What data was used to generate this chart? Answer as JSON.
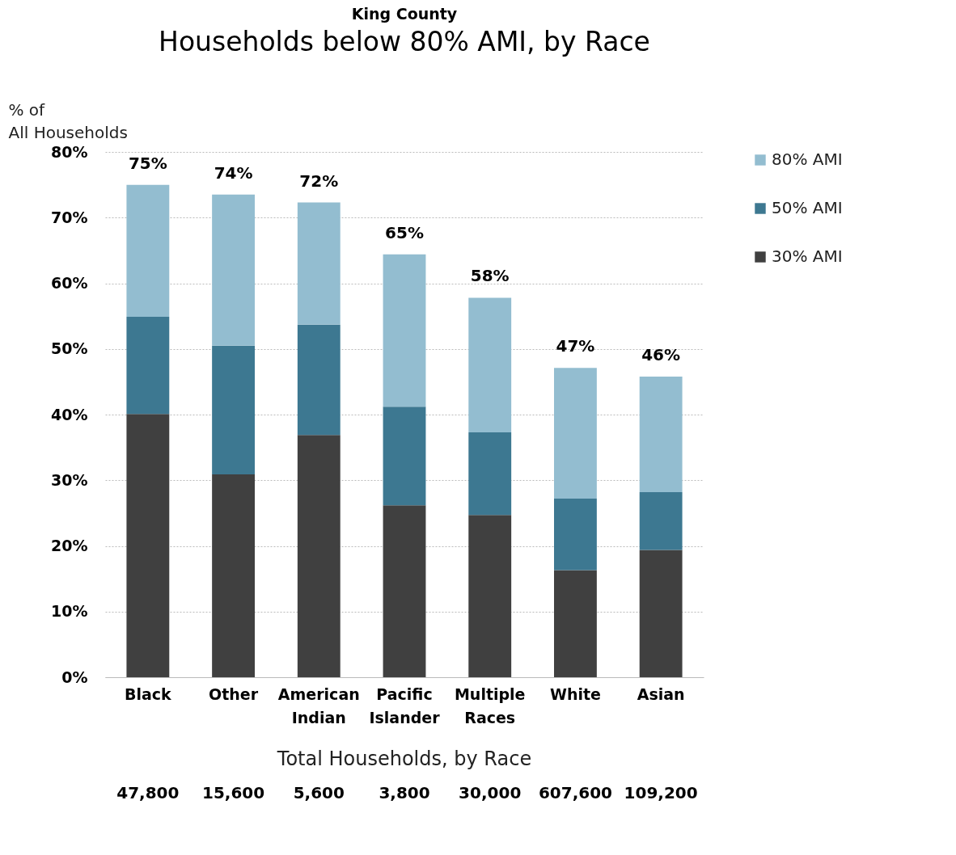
{
  "chart_data": {
    "type": "bar",
    "title": "Households below 80% AMI, by Race",
    "subtitle": "King County",
    "ylabel": "% of All Households",
    "categories": [
      "Black",
      "Other",
      "American Indian",
      "Pacific Islander",
      "Multiple Races",
      "White",
      "Asian"
    ],
    "stacked": true,
    "series": [
      {
        "name": "30% AMI",
        "color": "#404040",
        "values": [
          40.1,
          30.9,
          36.9,
          26.2,
          24.7,
          16.3,
          19.4
        ]
      },
      {
        "name": "50% AMI",
        "color": "#3d7891",
        "values": [
          14.8,
          19.6,
          16.8,
          15,
          12.6,
          10.9,
          8.8
        ]
      },
      {
        "name": "80% AMI",
        "color": "#93bdd0",
        "values": [
          20.1,
          23,
          18.6,
          23.2,
          20.5,
          19.9,
          17.6
        ]
      }
    ],
    "totals": [
      "75%",
      "74%",
      "72%",
      "65%",
      "58%",
      "47%",
      "46%"
    ],
    "ylim": [
      0,
      80
    ],
    "yticks": [
      {
        "value": 0,
        "label": "0%"
      },
      {
        "value": 10,
        "label": "10%"
      },
      {
        "value": 20,
        "label": "20%"
      },
      {
        "value": 30,
        "label": "30%"
      },
      {
        "value": 40,
        "label": "40%"
      },
      {
        "value": 50,
        "label": "50%"
      },
      {
        "value": 60,
        "label": "60%"
      },
      {
        "value": 70,
        "label": "70%"
      },
      {
        "value": 80,
        "label": "80%"
      }
    ],
    "grid": "y",
    "legend": "right",
    "annotations": [
      "Total Households, by Race",
      "47,800",
      "15,600",
      "5,600",
      "3,800",
      "30,000",
      "607,600",
      "109,200"
    ]
  }
}
